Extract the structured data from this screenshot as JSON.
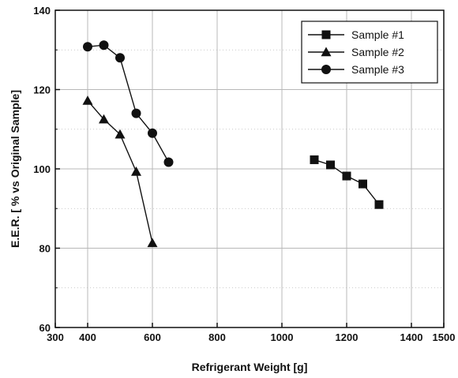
{
  "chart_data": {
    "type": "scatter",
    "title": "",
    "xlabel": "Refrigerant Weight [g]",
    "ylabel": "E.E.R. [ % vs Original Sample]",
    "xlim": [
      300,
      1500
    ],
    "ylim": [
      60,
      140
    ],
    "grid": true,
    "legend_position": "top-right",
    "x_ticks": [
      {
        "value": 300,
        "label": "300"
      },
      {
        "value": 400,
        "label": "400"
      },
      {
        "value": 600,
        "label": "600"
      },
      {
        "value": 800,
        "label": "800"
      },
      {
        "value": 1000,
        "label": "1000"
      },
      {
        "value": 1200,
        "label": "1200"
      },
      {
        "value": 1400,
        "label": "1400"
      },
      {
        "value": 1500,
        "label": "1500"
      }
    ],
    "y_ticks": [
      {
        "value": 60,
        "label": "60"
      },
      {
        "value": 80,
        "label": "80"
      },
      {
        "value": 100,
        "label": "100"
      },
      {
        "value": 120,
        "label": "120"
      },
      {
        "value": 140,
        "label": "140"
      }
    ],
    "series": [
      {
        "name": "Sample #1",
        "marker": "square",
        "connected": true,
        "x": [
          1100,
          1150,
          1200,
          1250,
          1300
        ],
        "y": [
          102.3,
          101.0,
          98.2,
          96.2,
          91.0
        ]
      },
      {
        "name": "Sample #2",
        "marker": "triangle",
        "connected": true,
        "x": [
          400,
          450,
          500,
          550,
          600
        ],
        "y": [
          117.2,
          112.5,
          108.7,
          99.3,
          81.3
        ]
      },
      {
        "name": "Sample #3",
        "marker": "circle",
        "connected": true,
        "x": [
          400,
          450,
          500,
          550,
          600,
          650
        ],
        "y": [
          130.8,
          131.2,
          128.0,
          114.0,
          109.0,
          101.7
        ]
      }
    ],
    "colors": {
      "marker": "#111111",
      "line": "#111111",
      "grid": "#b8b8b8",
      "background": "#ffffff"
    }
  }
}
